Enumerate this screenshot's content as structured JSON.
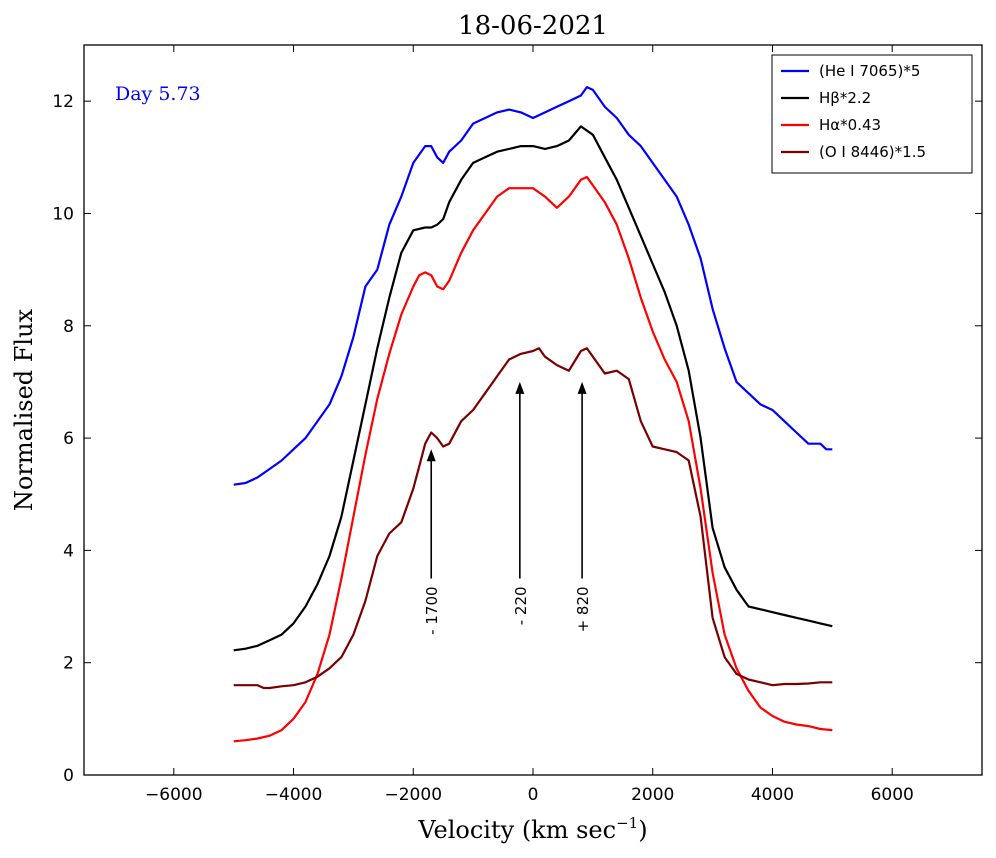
{
  "chart_data": {
    "type": "line",
    "title": "18-06-2021",
    "xlabel": "Velocity (km sec",
    "xlabel_sup": "−1",
    "xlabel_close": ")",
    "ylabel": "Normalised Flux",
    "xlim": [
      -7500,
      7500
    ],
    "ylim": [
      0,
      13
    ],
    "xticks": [
      -6000,
      -4000,
      -2000,
      0,
      2000,
      4000,
      6000
    ],
    "xtick_labels": [
      "−6000",
      "−4000",
      "−2000",
      "0",
      "2000",
      "4000",
      "6000"
    ],
    "yticks": [
      0,
      2,
      4,
      6,
      8,
      10,
      12
    ],
    "ytick_labels": [
      "0",
      "2",
      "4",
      "6",
      "8",
      "10",
      "12"
    ],
    "grid": false,
    "legend_position": "top-right",
    "day_label": "Day 5.73",
    "series": [
      {
        "name": "(He I 7065)*5",
        "color": "#0000ff",
        "x": [
          -5000,
          -4800,
          -4600,
          -4400,
          -4200,
          -4000,
          -3800,
          -3600,
          -3400,
          -3200,
          -3000,
          -2800,
          -2600,
          -2400,
          -2200,
          -2000,
          -1800,
          -1700,
          -1600,
          -1500,
          -1400,
          -1200,
          -1000,
          -800,
          -600,
          -400,
          -200,
          0,
          200,
          400,
          600,
          800,
          900,
          1000,
          1200,
          1400,
          1600,
          1800,
          2000,
          2200,
          2400,
          2600,
          2800,
          3000,
          3200,
          3400,
          3600,
          3800,
          4000,
          4200,
          4400,
          4600,
          4700,
          4800,
          4900,
          5000
        ],
        "y": [
          5.17,
          5.2,
          5.3,
          5.45,
          5.6,
          5.8,
          6.0,
          6.3,
          6.6,
          7.1,
          7.8,
          8.7,
          9.0,
          9.8,
          10.3,
          10.9,
          11.2,
          11.2,
          11.0,
          10.9,
          11.1,
          11.3,
          11.6,
          11.7,
          11.8,
          11.85,
          11.8,
          11.7,
          11.8,
          11.9,
          12.0,
          12.1,
          12.25,
          12.2,
          11.9,
          11.7,
          11.4,
          11.2,
          10.9,
          10.6,
          10.3,
          9.8,
          9.2,
          8.3,
          7.6,
          7.0,
          6.8,
          6.6,
          6.5,
          6.3,
          6.1,
          5.9,
          5.9,
          5.9,
          5.8,
          5.8
        ]
      },
      {
        "name": "Hβ*2.2",
        "color": "#000000",
        "x": [
          -5000,
          -4800,
          -4600,
          -4400,
          -4200,
          -4000,
          -3800,
          -3600,
          -3400,
          -3200,
          -3000,
          -2800,
          -2600,
          -2400,
          -2200,
          -2000,
          -1800,
          -1700,
          -1600,
          -1500,
          -1400,
          -1200,
          -1000,
          -800,
          -600,
          -400,
          -200,
          0,
          200,
          400,
          600,
          800,
          1000,
          1200,
          1400,
          1600,
          1800,
          2000,
          2200,
          2400,
          2600,
          2800,
          3000,
          3200,
          3400,
          3600,
          3800,
          4000,
          4200,
          4400,
          4600,
          4800,
          5000
        ],
        "y": [
          2.22,
          2.25,
          2.3,
          2.4,
          2.5,
          2.7,
          3.0,
          3.4,
          3.9,
          4.6,
          5.6,
          6.6,
          7.6,
          8.5,
          9.3,
          9.7,
          9.75,
          9.75,
          9.8,
          9.9,
          10.2,
          10.6,
          10.9,
          11.0,
          11.1,
          11.15,
          11.2,
          11.2,
          11.15,
          11.2,
          11.3,
          11.55,
          11.4,
          11.0,
          10.6,
          10.1,
          9.6,
          9.1,
          8.6,
          8.0,
          7.2,
          6.0,
          4.4,
          3.7,
          3.3,
          3.0,
          2.95,
          2.9,
          2.85,
          2.8,
          2.75,
          2.7,
          2.65
        ]
      },
      {
        "name": "Hα*0.43",
        "color": "#ff0000",
        "x": [
          -5000,
          -4800,
          -4600,
          -4400,
          -4200,
          -4000,
          -3800,
          -3600,
          -3400,
          -3200,
          -3000,
          -2800,
          -2600,
          -2400,
          -2200,
          -2000,
          -1900,
          -1800,
          -1700,
          -1600,
          -1500,
          -1400,
          -1200,
          -1000,
          -800,
          -600,
          -400,
          -200,
          0,
          200,
          400,
          600,
          800,
          900,
          1000,
          1200,
          1400,
          1600,
          1800,
          2000,
          2200,
          2400,
          2600,
          2800,
          3000,
          3200,
          3400,
          3600,
          3800,
          4000,
          4200,
          4400,
          4600,
          4800,
          5000
        ],
        "y": [
          0.6,
          0.62,
          0.65,
          0.7,
          0.8,
          1.0,
          1.3,
          1.8,
          2.5,
          3.5,
          4.6,
          5.7,
          6.7,
          7.5,
          8.2,
          8.7,
          8.9,
          8.95,
          8.9,
          8.7,
          8.65,
          8.8,
          9.3,
          9.7,
          10.0,
          10.3,
          10.45,
          10.45,
          10.45,
          10.3,
          10.1,
          10.3,
          10.6,
          10.65,
          10.5,
          10.2,
          9.8,
          9.2,
          8.5,
          7.9,
          7.4,
          7.0,
          6.3,
          5.1,
          3.6,
          2.5,
          1.9,
          1.5,
          1.2,
          1.05,
          0.95,
          0.9,
          0.87,
          0.82,
          0.8
        ]
      },
      {
        "name": "(O I 8446)*1.5",
        "color": "#7a0000",
        "x": [
          -5000,
          -4800,
          -4600,
          -4500,
          -4400,
          -4200,
          -4000,
          -3800,
          -3600,
          -3400,
          -3200,
          -3000,
          -2800,
          -2600,
          -2400,
          -2200,
          -2000,
          -1900,
          -1800,
          -1700,
          -1600,
          -1500,
          -1400,
          -1200,
          -1000,
          -800,
          -600,
          -400,
          -200,
          0,
          100,
          200,
          400,
          600,
          800,
          900,
          1000,
          1200,
          1400,
          1600,
          1800,
          2000,
          2200,
          2400,
          2600,
          2800,
          3000,
          3200,
          3400,
          3600,
          3800,
          4000,
          4200,
          4400,
          4600,
          4800,
          5000
        ],
        "y": [
          1.6,
          1.6,
          1.6,
          1.55,
          1.55,
          1.58,
          1.6,
          1.65,
          1.75,
          1.9,
          2.1,
          2.5,
          3.1,
          3.9,
          4.3,
          4.5,
          5.1,
          5.5,
          5.9,
          6.1,
          6.0,
          5.85,
          5.9,
          6.3,
          6.5,
          6.8,
          7.1,
          7.4,
          7.5,
          7.55,
          7.6,
          7.45,
          7.3,
          7.2,
          7.55,
          7.6,
          7.45,
          7.15,
          7.2,
          7.05,
          6.3,
          5.85,
          5.8,
          5.75,
          5.6,
          4.6,
          2.8,
          2.1,
          1.8,
          1.7,
          1.65,
          1.6,
          1.62,
          1.62,
          1.63,
          1.65,
          1.65
        ]
      }
    ],
    "annotations": [
      {
        "label": "- 1700",
        "x": -1700,
        "y_tail": 3.5,
        "y_head": 5.8
      },
      {
        "label": "- 220",
        "x": -220,
        "y_tail": 3.5,
        "y_head": 7.0
      },
      {
        "label": "+ 820",
        "x": 820,
        "y_tail": 3.5,
        "y_head": 7.0
      }
    ]
  }
}
